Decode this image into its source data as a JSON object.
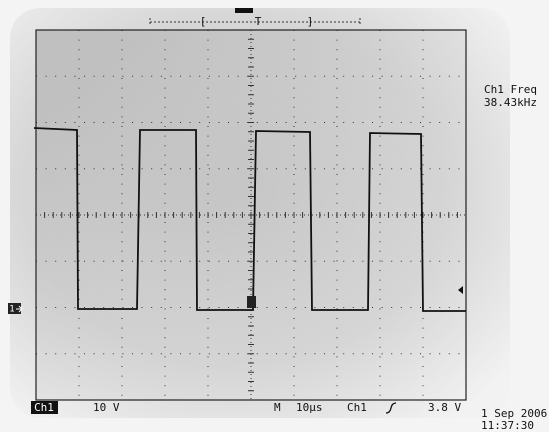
{
  "trigger_label": "T",
  "measurement": {
    "label": "Ch1 Freq",
    "value": "38.43kHz"
  },
  "channel_marker": "1",
  "status": {
    "channel": "Ch1",
    "scale": "10 V",
    "mode": "M",
    "timebase": "10µs",
    "trigger_source": "Ch1",
    "trigger_level": "3.8 V"
  },
  "date": "1 Sep 2006",
  "time": "11:37:30"
}
